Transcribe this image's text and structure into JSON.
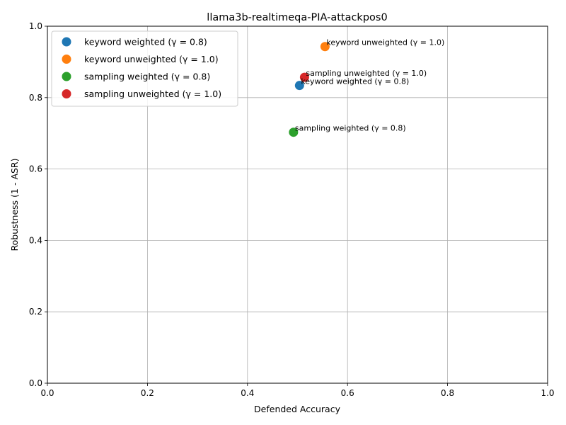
{
  "chart_data": {
    "type": "scatter",
    "title": "llama3b-realtimeqa-PIA-attackpos0",
    "xlabel": "Defended Accuracy",
    "ylabel": "Robustness (1 - ASR)",
    "xlim": [
      0.0,
      1.0
    ],
    "ylim": [
      0.0,
      1.0
    ],
    "xticks": [
      "0.0",
      "0.2",
      "0.4",
      "0.6",
      "0.8",
      "1.0"
    ],
    "yticks": [
      "0.0",
      "0.2",
      "0.4",
      "0.6",
      "0.8",
      "1.0"
    ],
    "grid": true,
    "legend_position": "top-left",
    "series": [
      {
        "name": "keyword weighted (γ = 0.8)",
        "color": "#1f77b4",
        "x": 0.504,
        "y": 0.834,
        "annotation": "keyword weighted (γ = 0.8)"
      },
      {
        "name": "keyword unweighted (γ = 1.0)",
        "color": "#ff7f0e",
        "x": 0.555,
        "y": 0.943,
        "annotation": "keyword unweighted (γ = 1.0)"
      },
      {
        "name": "sampling weighted (γ = 0.8)",
        "color": "#2ca02c",
        "x": 0.492,
        "y": 0.703,
        "annotation": "sampling weighted (γ = 0.8)"
      },
      {
        "name": "sampling unweighted (γ = 1.0)",
        "color": "#d62728",
        "x": 0.514,
        "y": 0.857,
        "annotation": "sampling unweighted (γ = 1.0)"
      }
    ]
  }
}
